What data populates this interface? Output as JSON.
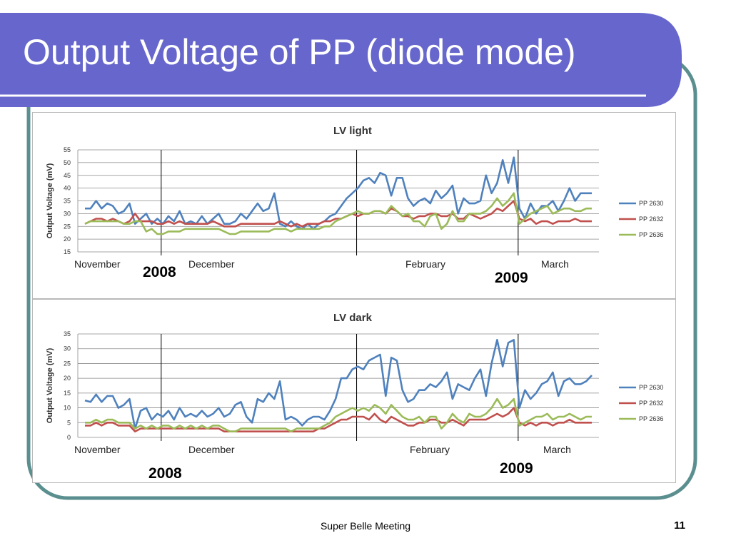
{
  "slide": {
    "title": "Output Voltage of PP (diode mode)",
    "footer": "Super Belle Meeting",
    "page_number": "11",
    "colors": {
      "header": "#6666cc",
      "frame": "#5b8f8f",
      "pp2630": "#4f81bd",
      "pp2632": "#c0504d",
      "pp2636": "#9bbb59"
    }
  },
  "chart_data": [
    {
      "type": "line",
      "title": "LV light",
      "ylabel": "Output Voltage (mV)",
      "ylim": [
        15,
        55
      ],
      "yticks": [
        15,
        20,
        25,
        30,
        35,
        40,
        45,
        50,
        55
      ],
      "grid": true,
      "legend_position": "right",
      "month_labels": [
        "November",
        "December",
        "February",
        "March"
      ],
      "year_labels": [
        "2008",
        "2009"
      ],
      "x": [
        0,
        1,
        2,
        3,
        4,
        5,
        6,
        7,
        8,
        9,
        10,
        11,
        12,
        13,
        14,
        15,
        16,
        17,
        18,
        19,
        20,
        21,
        22,
        23,
        24,
        25,
        26,
        27,
        28,
        29,
        30,
        31,
        32,
        33,
        34,
        35,
        36,
        37,
        38,
        39,
        40,
        41,
        42,
        43,
        44,
        45,
        46,
        47,
        48,
        49,
        50,
        51,
        52,
        53,
        54,
        55,
        56,
        57,
        58,
        59,
        60,
        61,
        62,
        63,
        64,
        65,
        66,
        67,
        68,
        69,
        70,
        71,
        72,
        73,
        74,
        75,
        76,
        77,
        78,
        79,
        80,
        81,
        82,
        83,
        84,
        85,
        86,
        87,
        88,
        89,
        90,
        91,
        92,
        93,
        94,
        95,
        96,
        97,
        98,
        99,
        100,
        101,
        102,
        103,
        104,
        105,
        106,
        107,
        108,
        109,
        110,
        111,
        112,
        113,
        114,
        115,
        116,
        117,
        118,
        119,
        120
      ],
      "series": [
        {
          "name": "PP 2630",
          "color": "#4f81bd",
          "values": [
            32,
            32,
            35,
            32,
            34,
            33,
            30,
            31,
            34,
            26,
            28,
            30,
            26,
            28,
            26,
            29,
            27,
            31,
            26,
            27,
            26,
            29,
            26,
            28,
            30,
            26,
            26,
            27,
            30,
            28,
            31,
            34,
            31,
            32,
            38,
            26,
            25,
            27,
            25,
            24,
            26,
            24,
            26,
            27,
            29,
            30,
            33,
            36,
            38,
            40,
            43,
            44,
            42,
            46,
            45,
            37,
            44,
            44,
            36,
            33,
            35,
            36,
            34,
            39,
            36,
            38,
            41,
            30,
            36,
            34,
            34,
            35,
            45,
            38,
            42,
            51,
            42,
            52,
            32,
            28,
            34,
            30,
            33,
            33,
            35,
            31,
            35,
            40,
            35,
            38,
            38,
            38,
            38,
            39,
            42,
            42,
            42,
            42,
            42,
            42,
            42,
            42,
            42,
            42,
            42,
            42,
            42,
            42,
            42,
            42,
            42,
            42,
            42,
            42,
            42,
            42,
            42,
            42,
            42,
            42,
            42
          ],
          "points_note": ""
        },
        {
          "name": "PP 2632",
          "color": "#c0504d",
          "values": [
            26,
            27,
            28,
            28,
            27,
            28,
            27,
            26,
            27,
            30,
            27,
            27,
            27,
            26,
            26,
            27,
            26,
            27,
            26,
            26,
            26,
            26,
            26,
            27,
            26,
            25,
            25,
            25,
            26,
            26,
            26,
            26,
            26,
            26,
            26,
            27,
            26,
            25,
            26,
            25,
            26,
            26,
            26,
            27,
            27,
            28,
            28,
            29,
            30,
            29,
            30,
            30,
            31,
            31,
            30,
            32,
            31,
            29,
            29,
            28,
            29,
            29,
            30,
            30,
            29,
            29,
            30,
            28,
            28,
            30,
            29,
            28,
            29,
            30,
            32,
            31,
            33,
            35,
            28,
            27,
            28,
            26,
            27,
            27,
            26,
            27,
            27,
            27,
            28,
            27,
            27,
            27,
            27,
            27,
            27,
            27,
            27,
            27,
            27,
            27,
            27,
            27,
            27,
            27,
            27,
            27,
            27,
            27,
            27,
            27,
            27,
            27,
            27,
            27,
            27,
            27,
            27,
            27,
            27,
            27,
            27
          ]
        },
        {
          "name": "PP 2636",
          "color": "#9bbb59",
          "values": [
            26,
            27,
            27,
            27,
            27,
            27,
            27,
            26,
            26,
            27,
            27,
            23,
            24,
            22,
            22,
            23,
            23,
            23,
            24,
            24,
            24,
            24,
            24,
            24,
            24,
            23,
            22,
            22,
            23,
            23,
            23,
            23,
            23,
            23,
            24,
            24,
            24,
            23,
            24,
            24,
            24,
            24,
            24,
            25,
            25,
            27,
            28,
            29,
            30,
            31,
            30,
            30,
            31,
            31,
            30,
            33,
            31,
            29,
            30,
            27,
            27,
            25,
            29,
            30,
            24,
            26,
            31,
            27,
            27,
            30,
            30,
            30,
            31,
            33,
            36,
            33,
            35,
            38,
            26,
            28,
            30,
            31,
            32,
            33,
            30,
            31,
            32,
            32,
            31,
            31,
            32,
            32,
            32,
            32,
            32,
            32,
            32,
            32,
            32,
            32,
            32,
            32,
            32,
            32,
            32,
            32,
            32,
            32,
            32,
            32,
            32,
            32,
            32,
            32,
            32,
            32,
            32,
            32,
            32,
            32,
            32
          ]
        }
      ]
    },
    {
      "type": "line",
      "title": "LV dark",
      "ylabel": "Output Voltage (mV)",
      "ylim": [
        0,
        35
      ],
      "yticks": [
        0,
        5,
        10,
        15,
        20,
        25,
        30,
        35
      ],
      "grid": true,
      "legend_position": "right",
      "month_labels": [
        "November",
        "December",
        "February",
        "March"
      ],
      "year_labels": [
        "2008",
        "2009"
      ],
      "series": [
        {
          "name": "PP 2630",
          "color": "#4f81bd",
          "values": [
            12.5,
            12,
            14.5,
            12,
            14,
            14,
            10,
            11,
            13,
            3,
            9,
            10,
            6,
            8,
            7,
            9,
            6,
            10,
            7,
            8,
            7,
            9,
            7,
            8,
            10,
            7,
            8,
            11,
            12,
            7,
            5,
            13,
            12,
            15,
            13,
            19,
            6,
            7,
            6,
            4,
            6,
            7,
            7,
            6,
            9,
            13,
            20,
            20,
            23,
            24,
            23,
            26,
            27,
            28,
            14,
            27,
            26,
            16,
            12,
            13,
            16,
            16,
            18,
            17,
            19,
            22,
            13,
            18,
            17,
            16,
            20,
            23,
            14,
            25,
            33,
            24,
            32,
            33,
            10,
            16,
            13,
            15,
            18,
            19,
            22,
            14,
            19,
            20,
            18,
            18,
            19,
            21,
            21.5,
            21.5,
            21.5,
            21.5,
            21.5,
            21.5,
            21.5,
            21.5,
            21.5,
            21.5,
            21.5,
            21.5,
            21.5,
            21.5,
            21.5,
            21.5,
            21.5,
            21.5,
            21.5,
            21.5,
            21.5,
            21.5,
            21.5,
            21.5,
            21.5,
            21.5,
            21.5,
            21.5,
            21.5
          ]
        },
        {
          "name": "PP 2632",
          "color": "#c0504d",
          "values": [
            4,
            4,
            5,
            4,
            5,
            5,
            4,
            4,
            4,
            2,
            3,
            3,
            3,
            3,
            3,
            3,
            3,
            3,
            3,
            3,
            3,
            3,
            3,
            3,
            3,
            2,
            2,
            2,
            2,
            2,
            2,
            2,
            2,
            2,
            2,
            2,
            2,
            2,
            2,
            2,
            2,
            2,
            3,
            3,
            4,
            5,
            6,
            6,
            7,
            7,
            7,
            6,
            8,
            6,
            5,
            7,
            6,
            5,
            4,
            4,
            5,
            5,
            6,
            6,
            5,
            5,
            6,
            5,
            4,
            6,
            6,
            6,
            6,
            7,
            8,
            7,
            8,
            10,
            5,
            4,
            5,
            4,
            5,
            5,
            4,
            5,
            5,
            6,
            5,
            5,
            5,
            5,
            5,
            5,
            5,
            5,
            5,
            5,
            5,
            5,
            5,
            5,
            5,
            5,
            5,
            5,
            5,
            5,
            5,
            5,
            5,
            5,
            5,
            5,
            5,
            5,
            5,
            5,
            5,
            5,
            5
          ]
        },
        {
          "name": "PP 2636",
          "color": "#9bbb59",
          "values": [
            5,
            5,
            6,
            5,
            6,
            6,
            5,
            5,
            5,
            3,
            4,
            3,
            4,
            3,
            4,
            4,
            3,
            4,
            3,
            4,
            3,
            4,
            3,
            4,
            4,
            3,
            2,
            2,
            3,
            3,
            3,
            3,
            3,
            3,
            3,
            3,
            3,
            2,
            3,
            3,
            3,
            3,
            3,
            4,
            5,
            7,
            8,
            9,
            10,
            9,
            10,
            9,
            11,
            10,
            8,
            11,
            9,
            7,
            6,
            6,
            7,
            5,
            7,
            7,
            3,
            5,
            8,
            6,
            5,
            8,
            7,
            7,
            8,
            10,
            13,
            10,
            11,
            13,
            4,
            5,
            6,
            7,
            7,
            8,
            6,
            7,
            7,
            8,
            7,
            6,
            7,
            7,
            7,
            7,
            7,
            7,
            7,
            7,
            7,
            7,
            7,
            7,
            7,
            7,
            7,
            7,
            7,
            7,
            7,
            7,
            7,
            7,
            7,
            7,
            7,
            7,
            7,
            7,
            7,
            7,
            7
          ]
        }
      ]
    }
  ]
}
